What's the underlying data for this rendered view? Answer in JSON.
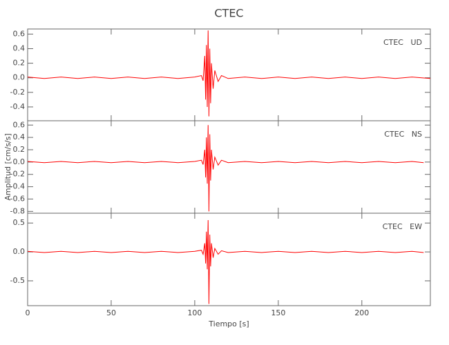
{
  "chart_data": [
    {
      "type": "line",
      "title": "CTEC",
      "annotation": "CTEC   UD",
      "color": "#ff0000",
      "xlim": [
        0,
        241
      ],
      "xticks": [
        0,
        50,
        100,
        150,
        200
      ],
      "ylim": [
        -0.59,
        0.67
      ],
      "yticks": [
        0.6,
        0.4,
        0.2,
        {
          "value": 0,
          "label": "0.0"
        },
        -0.2,
        -0.4
      ],
      "x": [
        0,
        10,
        20,
        30,
        40,
        50,
        60,
        70,
        80,
        90,
        100,
        104,
        105,
        106,
        106.5,
        107,
        107.5,
        108,
        108.5,
        109,
        109.5,
        110,
        111,
        112,
        114,
        116,
        120,
        130,
        140,
        150,
        160,
        170,
        180,
        190,
        200,
        210,
        220,
        230,
        241
      ],
      "values": [
        0.01,
        -0.01,
        0.01,
        -0.01,
        0.01,
        -0.01,
        0.01,
        -0.01,
        0.01,
        -0.01,
        0.01,
        0.03,
        -0.04,
        0.3,
        -0.3,
        0.45,
        -0.4,
        0.65,
        -0.53,
        0.4,
        -0.35,
        0.2,
        -0.15,
        0.1,
        -0.05,
        0.03,
        -0.01,
        0.01,
        -0.01,
        0.01,
        -0.01,
        0.01,
        -0.01,
        0.01,
        -0.01,
        0.01,
        -0.01,
        0.01,
        -0.01
      ]
    },
    {
      "type": "line",
      "annotation": "CTEC   NS",
      "ylabel": "Amplitud [cm/s/s]",
      "color": "#ff0000",
      "xlim": [
        0,
        241
      ],
      "xticks": [
        0,
        50,
        100,
        150,
        200
      ],
      "ylim": [
        -0.83,
        0.67
      ],
      "yticks": [
        0.6,
        0.4,
        0.2,
        {
          "value": 0,
          "label": "0.0"
        },
        -0.2,
        -0.4,
        -0.6,
        -0.8
      ],
      "x": [
        0,
        10,
        20,
        30,
        40,
        50,
        60,
        70,
        80,
        90,
        100,
        104,
        105,
        106,
        106.5,
        107,
        107.5,
        108,
        108.5,
        109,
        109.5,
        110,
        111,
        112,
        114,
        116,
        120,
        130,
        140,
        150,
        160,
        170,
        180,
        190,
        200,
        210,
        220,
        230,
        237
      ],
      "values": [
        0.01,
        -0.01,
        0.01,
        -0.01,
        0.01,
        -0.01,
        0.01,
        -0.01,
        0.01,
        -0.01,
        0.01,
        0.03,
        -0.04,
        0.2,
        -0.25,
        0.4,
        -0.35,
        0.6,
        -0.8,
        0.45,
        -0.3,
        0.2,
        -0.12,
        0.08,
        -0.05,
        0.03,
        -0.01,
        0.01,
        -0.01,
        0.01,
        -0.01,
        0.01,
        -0.01,
        0.01,
        -0.01,
        0.01,
        -0.01,
        0.01,
        -0.01
      ]
    },
    {
      "type": "line",
      "annotation": "CTEC   EW",
      "xlabel": "Tiempo [s]",
      "color": "#ff0000",
      "xlim": [
        0,
        241
      ],
      "xticks": [
        0,
        50,
        100,
        150,
        200
      ],
      "ylim": [
        -0.93,
        0.67
      ],
      "yticks": [
        0.5,
        {
          "value": 0,
          "label": "0.0"
        },
        -0.5
      ],
      "x": [
        0,
        10,
        20,
        30,
        40,
        50,
        60,
        70,
        80,
        90,
        100,
        104,
        105,
        106,
        106.5,
        107,
        107.5,
        108,
        108.5,
        109,
        109.5,
        110,
        111,
        112,
        114,
        116,
        120,
        130,
        140,
        150,
        160,
        170,
        180,
        190,
        200,
        210,
        220,
        230,
        237
      ],
      "values": [
        0.01,
        -0.01,
        0.01,
        -0.01,
        0.01,
        -0.01,
        0.01,
        -0.01,
        0.01,
        -0.01,
        0.01,
        0.03,
        -0.04,
        0.15,
        -0.2,
        0.35,
        -0.3,
        0.55,
        -0.9,
        0.3,
        -0.25,
        0.15,
        -0.1,
        0.06,
        -0.04,
        0.02,
        -0.01,
        0.01,
        -0.01,
        0.01,
        -0.01,
        0.01,
        -0.01,
        0.01,
        -0.01,
        0.01,
        -0.01,
        0.01,
        -0.01
      ]
    }
  ]
}
